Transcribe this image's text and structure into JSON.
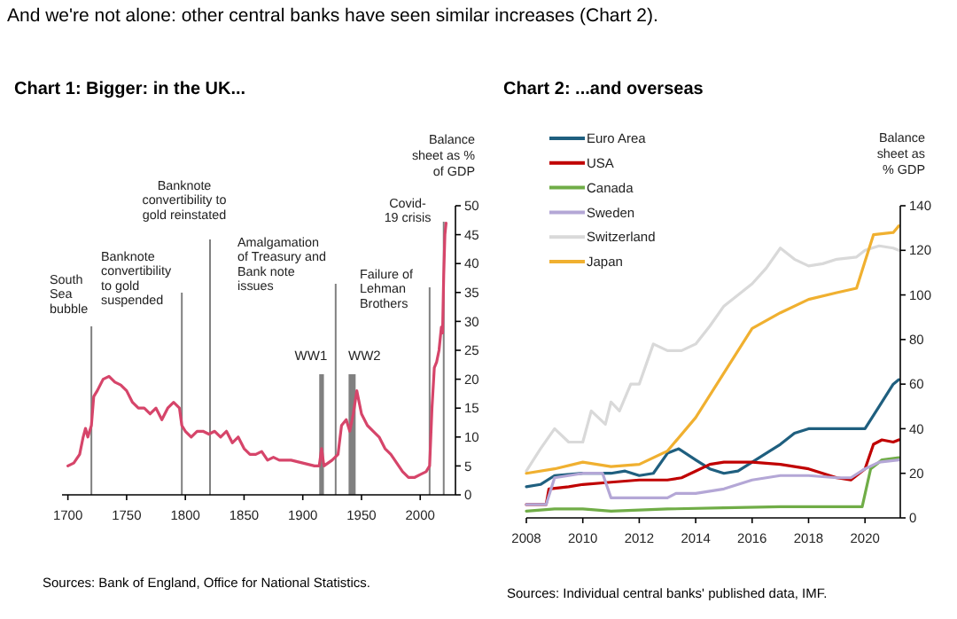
{
  "chart_data": [
    {
      "type": "other",
      "title": "And we're not alone:  other central banks have seen similar increases (Chart 2)."
    },
    {
      "type": "line",
      "title": "Chart 1:  Bigger:  in the UK...",
      "ylabel": "Balance sheet as % of GDP",
      "color": "#d6456a",
      "x": [
        1700,
        1705,
        1710,
        1713,
        1715,
        1717,
        1720,
        1722,
        1725,
        1730,
        1735,
        1740,
        1745,
        1750,
        1755,
        1760,
        1765,
        1770,
        1775,
        1780,
        1785,
        1790,
        1795,
        1797,
        1800,
        1805,
        1810,
        1815,
        1820,
        1825,
        1830,
        1835,
        1840,
        1845,
        1850,
        1855,
        1860,
        1865,
        1870,
        1875,
        1880,
        1890,
        1900,
        1910,
        1914,
        1916,
        1918,
        1925,
        1930,
        1933,
        1937,
        1940,
        1943,
        1946,
        1950,
        1955,
        1960,
        1965,
        1970,
        1975,
        1980,
        1985,
        1990,
        1995,
        2000,
        2005,
        2008,
        2010,
        2012,
        2014,
        2016,
        2018,
        2019,
        2020,
        2021,
        2022
      ],
      "values": [
        5,
        5.5,
        7,
        10,
        11.5,
        10,
        12,
        17,
        18,
        20,
        20.5,
        19.5,
        19,
        18,
        16,
        15,
        15,
        14,
        15,
        13,
        15,
        16,
        15,
        12,
        11,
        10,
        11,
        11,
        10.5,
        11,
        10,
        11,
        9,
        10,
        8,
        7,
        7,
        7.5,
        6,
        6.5,
        6,
        6,
        5.5,
        5,
        5,
        8,
        5,
        6,
        7,
        12,
        13,
        11,
        14,
        18,
        14,
        12,
        11,
        10,
        8,
        7,
        5.5,
        4,
        3,
        3,
        3.5,
        4,
        5,
        15,
        22,
        23,
        25,
        29,
        28,
        38,
        45,
        47
      ],
      "xlim": [
        1695,
        2030
      ],
      "xticks": [
        1700,
        1750,
        1800,
        1850,
        1900,
        1950,
        2000
      ],
      "ylim": [
        0,
        50
      ],
      "yticks": [
        0,
        5,
        10,
        15,
        20,
        25,
        30,
        35,
        40,
        45,
        50
      ],
      "ref_lines": [
        {
          "axis": "x",
          "value": 1720,
          "label": "South Sea bubble",
          "color": "#808080"
        },
        {
          "axis": "x",
          "value": 1797,
          "label": "Banknote convertibility to gold suspended",
          "color": "#808080"
        },
        {
          "axis": "x",
          "value": 1821,
          "label": "Banknote convertibility to gold reinstated",
          "color": "#808080"
        },
        {
          "axis": "x",
          "value": 1928,
          "label": "Amalgamation of Treasury and Bank note issues",
          "color": "#808080"
        },
        {
          "axis": "x",
          "value": 2008,
          "label": "Failure of Lehman Brothers",
          "color": "#808080"
        },
        {
          "axis": "x",
          "value": 2020,
          "label": "Covid-19 crisis",
          "color": "#808080"
        }
      ],
      "bands": [
        {
          "axis": "x",
          "from": 1914,
          "to": 1918,
          "label": "WW1",
          "color": "#808080"
        },
        {
          "axis": "x",
          "from": 1939,
          "to": 1945,
          "label": "WW2",
          "color": "#808080"
        }
      ],
      "annotations": [
        "Sources: Bank of England, Office for National Statistics."
      ]
    },
    {
      "type": "line",
      "title": "Chart 2:  ...and overseas",
      "ylabel": "Balance sheet as % GDP",
      "legend": "top left",
      "xlim": [
        2008,
        2021.25
      ],
      "xticks": [
        2008,
        2010,
        2012,
        2014,
        2016,
        2018,
        2020
      ],
      "ylim": [
        0,
        140
      ],
      "yticks": [
        0,
        20,
        40,
        60,
        80,
        100,
        120,
        140
      ],
      "series": [
        {
          "name": "Euro Area",
          "color": "#1f5f7f",
          "x": [
            2008,
            2008.5,
            2009,
            2010,
            2011,
            2011.5,
            2012,
            2012.5,
            2013,
            2013.4,
            2014,
            2014.5,
            2015,
            2015.5,
            2016,
            2017,
            2017.5,
            2018,
            2019,
            2019.5,
            2020,
            2020.5,
            2021,
            2021.2
          ],
          "values": [
            14,
            15,
            19,
            20,
            20,
            21,
            19,
            20,
            29,
            31,
            26,
            22,
            20,
            21,
            25,
            33,
            38,
            40,
            40,
            40,
            40,
            50,
            60,
            62
          ]
        },
        {
          "name": "USA",
          "color": "#c00000",
          "x": [
            2008,
            2008.7,
            2008.8,
            2009.5,
            2010,
            2011,
            2012,
            2013,
            2013.5,
            2014,
            2014.5,
            2015,
            2016,
            2017,
            2018,
            2019,
            2019.5,
            2020,
            2020.3,
            2020.6,
            2021,
            2021.2
          ],
          "values": [
            6,
            6,
            13,
            14,
            15,
            16,
            17,
            17,
            18,
            21,
            24,
            25,
            25,
            24,
            22,
            18,
            17,
            22,
            33,
            35,
            34,
            35
          ]
        },
        {
          "name": "Canada",
          "color": "#70ad47",
          "x": [
            2008,
            2009,
            2010,
            2011,
            2013,
            2015,
            2017,
            2019,
            2019.9,
            2020.2,
            2020.6,
            2021.2
          ],
          "values": [
            3,
            4,
            4,
            3,
            4,
            4.5,
            5,
            5,
            5,
            22,
            26,
            27
          ]
        },
        {
          "name": "Sweden",
          "color": "#b4a7d6",
          "x": [
            2008,
            2008.7,
            2009,
            2010,
            2010.7,
            2011,
            2012,
            2013,
            2013.3,
            2014,
            2015,
            2016,
            2017,
            2018,
            2019,
            2019.5,
            2020,
            2020.5,
            2021.2
          ],
          "values": [
            6,
            6,
            18,
            20,
            20,
            9,
            9,
            9,
            11,
            11,
            13,
            17,
            19,
            19,
            18,
            18,
            22,
            25,
            26
          ]
        },
        {
          "name": "Switzerland",
          "color": "#d9d9d9",
          "x": [
            2008,
            2008.5,
            2009,
            2009.5,
            2010,
            2010.3,
            2010.8,
            2011,
            2011.3,
            2011.7,
            2012,
            2012.5,
            2013,
            2013.5,
            2014,
            2014.5,
            2015,
            2016,
            2016.5,
            2017,
            2017.5,
            2018,
            2018.5,
            2019,
            2019.7,
            2020,
            2020.5,
            2021,
            2021.2
          ],
          "values": [
            21,
            31,
            40,
            34,
            34,
            48,
            42,
            52,
            48,
            60,
            60,
            78,
            75,
            75,
            78,
            86,
            95,
            105,
            112,
            121,
            116,
            113,
            114,
            116,
            117,
            120,
            122,
            121,
            120
          ]
        },
        {
          "name": "Japan",
          "color": "#f0b030",
          "x": [
            2008,
            2009,
            2010,
            2011,
            2012,
            2013,
            2014,
            2015,
            2016,
            2017,
            2018,
            2019,
            2019.7,
            2020,
            2020.3,
            2021,
            2021.2
          ],
          "values": [
            20,
            22,
            25,
            23,
            24,
            30,
            45,
            65,
            85,
            92,
            98,
            101,
            103,
            115,
            127,
            128,
            131
          ]
        }
      ],
      "annotations": [
        "Sources:  Individual central banks' published data, IMF."
      ]
    }
  ]
}
